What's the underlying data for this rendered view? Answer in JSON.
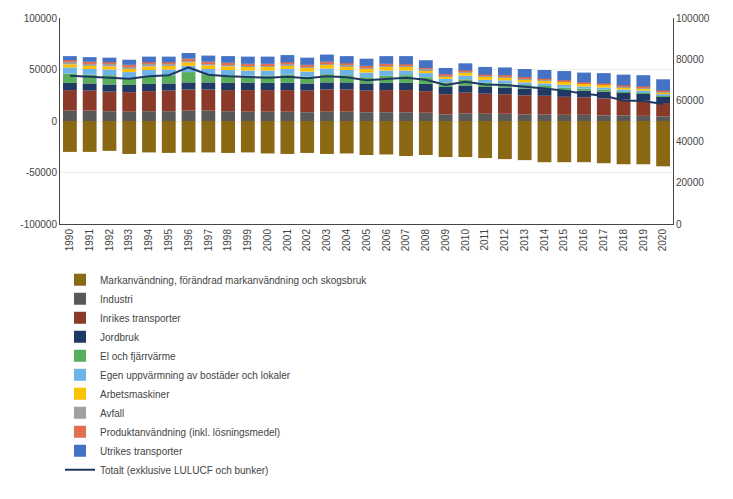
{
  "chart_data": {
    "type": "bar",
    "stacked": true,
    "grid": true,
    "legend": "bottom",
    "categories": [
      "1990",
      "1991",
      "1992",
      "1993",
      "1994",
      "1995",
      "1996",
      "1997",
      "1998",
      "1999",
      "2000",
      "2001",
      "2002",
      "2003",
      "2004",
      "2005",
      "2006",
      "2007",
      "2008",
      "2009",
      "2010",
      "2011",
      "2012",
      "2013",
      "2014",
      "2015",
      "2016",
      "2017",
      "2018",
      "2019",
      "2020"
    ],
    "ylim": [
      -100000,
      100000
    ],
    "yticks": [
      -100000,
      -50000,
      0,
      50000,
      100000
    ],
    "y2lim": [
      0,
      100000
    ],
    "y2ticks": [
      0,
      20000,
      40000,
      60000,
      80000,
      100000
    ],
    "series": [
      {
        "name": "Markanvändning, förändrad markanvändning och skogsbruk",
        "color": "#8B6914",
        "values": [
          -30000,
          -30000,
          -29000,
          -32000,
          -30500,
          -31000,
          -30500,
          -30500,
          -31000,
          -30500,
          -31500,
          -32000,
          -31000,
          -32000,
          -31500,
          -33000,
          -32500,
          -34000,
          -33000,
          -35000,
          -35000,
          -36000,
          -37000,
          -38000,
          -40000,
          -40000,
          -40000,
          -41000,
          -42000,
          -42000,
          -44000
        ]
      },
      {
        "name": "Industri",
        "color": "#595959",
        "values": [
          10000,
          10000,
          9500,
          9000,
          9500,
          9500,
          10000,
          10000,
          9500,
          9000,
          9000,
          9000,
          8500,
          9000,
          9000,
          8500,
          8500,
          8500,
          8000,
          6500,
          7500,
          7000,
          7000,
          6500,
          6500,
          6000,
          6000,
          5500,
          5500,
          5000,
          4500
        ]
      },
      {
        "name": "Inrikes transporter",
        "color": "#8B3A2A",
        "values": [
          20000,
          19500,
          19000,
          19000,
          19500,
          20000,
          20500,
          20500,
          20500,
          21000,
          21000,
          21000,
          21000,
          21500,
          21500,
          21000,
          21500,
          21500,
          21000,
          19500,
          20000,
          19500,
          19000,
          18500,
          18000,
          17500,
          17000,
          16500,
          15500,
          15000,
          13000
        ]
      },
      {
        "name": "Jordbruk",
        "color": "#1F3864",
        "values": [
          7000,
          7000,
          7000,
          7000,
          7000,
          7000,
          7000,
          7000,
          7000,
          7000,
          7000,
          7000,
          7000,
          7000,
          7000,
          7000,
          7000,
          7000,
          7000,
          7000,
          7000,
          6500,
          6500,
          6500,
          6500,
          6500,
          6500,
          6500,
          6500,
          6500,
          6000
        ]
      },
      {
        "name": "El och fjärrvärme",
        "color": "#5AAD5A",
        "values": [
          9000,
          8500,
          9000,
          7000,
          8000,
          8000,
          10000,
          8000,
          7500,
          7000,
          7000,
          8000,
          6500,
          8000,
          7000,
          6000,
          7000,
          7500,
          6500,
          4500,
          6000,
          4000,
          4000,
          3500,
          3000,
          2500,
          2000,
          2000,
          1500,
          1500,
          1000
        ]
      },
      {
        "name": "Egen uppvärmning av bostäder och lokaler",
        "color": "#6DB3E8",
        "values": [
          6000,
          5500,
          5500,
          5500,
          5500,
          5500,
          6000,
          5000,
          5000,
          5000,
          5000,
          5500,
          5000,
          5500,
          5000,
          4500,
          5000,
          4500,
          4000,
          3500,
          3500,
          3000,
          3000,
          2500,
          2500,
          2500,
          2000,
          2000,
          1500,
          1500,
          1500
        ]
      },
      {
        "name": "Arbetsmaskiner",
        "color": "#FFC000",
        "values": [
          3000,
          3000,
          3000,
          3000,
          3500,
          3500,
          3500,
          3500,
          3500,
          3500,
          3500,
          3500,
          3500,
          3500,
          3500,
          3500,
          3500,
          3500,
          3000,
          2500,
          3000,
          3000,
          3000,
          3000,
          3000,
          3000,
          2500,
          2500,
          2500,
          2500,
          2000
        ]
      },
      {
        "name": "Avfall",
        "color": "#A0A0A0",
        "values": [
          2500,
          2500,
          2500,
          2500,
          2500,
          2000,
          2000,
          2000,
          2000,
          1500,
          1500,
          1500,
          1500,
          1500,
          1500,
          1500,
          1500,
          1000,
          1000,
          1000,
          1000,
          1000,
          1000,
          1000,
          500,
          500,
          500,
          500,
          500,
          500,
          500
        ]
      },
      {
        "name": "Produktanvändning (inkl. lösningsmedel)",
        "color": "#E07050",
        "values": [
          1500,
          1500,
          1500,
          1500,
          1500,
          1500,
          1500,
          1500,
          1500,
          1500,
          1500,
          1500,
          1500,
          1500,
          1500,
          1500,
          1500,
          1500,
          1000,
          1000,
          1000,
          1000,
          1000,
          1000,
          1000,
          1000,
          1000,
          1000,
          1000,
          1000,
          1000
        ]
      },
      {
        "name": "Utrikes transporter",
        "color": "#4472C4",
        "values": [
          4000,
          4500,
          4500,
          5000,
          5500,
          5500,
          5500,
          6000,
          6500,
          7000,
          7000,
          7000,
          7000,
          7000,
          7000,
          7000,
          7500,
          8000,
          7500,
          6000,
          7000,
          7500,
          7500,
          8000,
          8500,
          9000,
          9500,
          10000,
          10500,
          11000,
          11000
        ]
      },
      {
        "name": "Totalt (exklusive LULUCF och bunker)",
        "type": "line",
        "color": "#1F3864",
        "values": [
          44000,
          43000,
          42500,
          41000,
          43500,
          44500,
          52000,
          45000,
          43500,
          43000,
          42000,
          43000,
          41500,
          43500,
          42500,
          39500,
          41000,
          42000,
          40000,
          35000,
          38000,
          35500,
          35000,
          33500,
          31500,
          29500,
          26500,
          24500,
          20000,
          19500,
          16500
        ]
      }
    ]
  }
}
